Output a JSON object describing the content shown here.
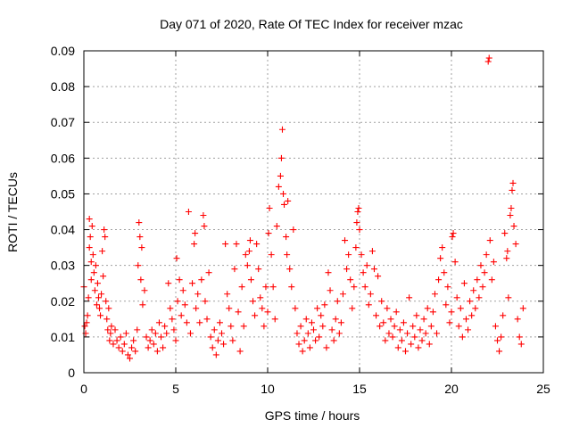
{
  "chart_data": {
    "type": "scatter",
    "title": "Day 071 of 2020, Rate Of TEC Index for receiver mzac",
    "xlabel": "GPS time / hours",
    "ylabel": "ROTI / TECUs",
    "xlim": [
      0,
      25
    ],
    "ylim": [
      0,
      0.09
    ],
    "x_ticks": [
      0,
      5,
      10,
      15,
      20,
      25
    ],
    "x_tick_labels": [
      "0",
      "5",
      "10",
      "15",
      "20",
      "25"
    ],
    "y_ticks": [
      0,
      0.01,
      0.02,
      0.03,
      0.04,
      0.05,
      0.06,
      0.07,
      0.08,
      0.09
    ],
    "y_tick_labels": [
      "0",
      "0.01",
      "0.02",
      "0.03",
      "0.04",
      "0.05",
      "0.06",
      "0.07",
      "0.08",
      "0.09"
    ],
    "grid": true,
    "marker": "+",
    "series": [
      {
        "name": "ROTI",
        "color": "#ff0000",
        "points": [
          [
            0.0,
            0.024
          ],
          [
            0.05,
            0.013
          ],
          [
            0.1,
            0.011
          ],
          [
            0.15,
            0.014
          ],
          [
            0.2,
            0.016
          ],
          [
            0.25,
            0.021
          ],
          [
            0.3,
            0.035
          ],
          [
            0.3,
            0.043
          ],
          [
            0.35,
            0.038
          ],
          [
            0.4,
            0.031
          ],
          [
            0.4,
            0.026
          ],
          [
            0.45,
            0.041
          ],
          [
            0.5,
            0.033
          ],
          [
            0.55,
            0.028
          ],
          [
            0.6,
            0.023
          ],
          [
            0.65,
            0.03
          ],
          [
            0.7,
            0.019
          ],
          [
            0.75,
            0.025
          ],
          [
            0.8,
            0.021
          ],
          [
            0.85,
            0.018
          ],
          [
            0.9,
            0.016
          ],
          [
            0.95,
            0.022
          ],
          [
            1.0,
            0.034
          ],
          [
            1.05,
            0.027
          ],
          [
            1.1,
            0.04
          ],
          [
            1.15,
            0.038
          ],
          [
            1.2,
            0.02
          ],
          [
            1.25,
            0.015
          ],
          [
            1.3,
            0.012
          ],
          [
            1.35,
            0.018
          ],
          [
            1.4,
            0.009
          ],
          [
            1.45,
            0.011
          ],
          [
            1.5,
            0.013
          ],
          [
            1.6,
            0.008
          ],
          [
            1.7,
            0.012
          ],
          [
            1.8,
            0.009
          ],
          [
            1.9,
            0.007
          ],
          [
            2.0,
            0.01
          ],
          [
            2.1,
            0.006
          ],
          [
            2.2,
            0.008
          ],
          [
            2.3,
            0.011
          ],
          [
            2.4,
            0.005
          ],
          [
            2.5,
            0.004
          ],
          [
            2.6,
            0.007
          ],
          [
            2.7,
            0.009
          ],
          [
            2.8,
            0.006
          ],
          [
            2.9,
            0.012
          ],
          [
            2.95,
            0.03
          ],
          [
            3.0,
            0.042
          ],
          [
            3.05,
            0.038
          ],
          [
            3.1,
            0.026
          ],
          [
            3.15,
            0.035
          ],
          [
            3.2,
            0.019
          ],
          [
            3.3,
            0.023
          ],
          [
            3.4,
            0.01
          ],
          [
            3.5,
            0.007
          ],
          [
            3.6,
            0.009
          ],
          [
            3.7,
            0.012
          ],
          [
            3.8,
            0.008
          ],
          [
            3.9,
            0.011
          ],
          [
            4.0,
            0.006
          ],
          [
            4.1,
            0.014
          ],
          [
            4.2,
            0.01
          ],
          [
            4.3,
            0.007
          ],
          [
            4.4,
            0.013
          ],
          [
            4.5,
            0.011
          ],
          [
            4.6,
            0.025
          ],
          [
            4.7,
            0.018
          ],
          [
            4.8,
            0.015
          ],
          [
            4.9,
            0.012
          ],
          [
            5.0,
            0.009
          ],
          [
            5.05,
            0.032
          ],
          [
            5.1,
            0.02
          ],
          [
            5.2,
            0.026
          ],
          [
            5.3,
            0.016
          ],
          [
            5.4,
            0.023
          ],
          [
            5.5,
            0.019
          ],
          [
            5.6,
            0.014
          ],
          [
            5.7,
            0.045
          ],
          [
            5.8,
            0.011
          ],
          [
            5.9,
            0.025
          ],
          [
            6.0,
            0.036
          ],
          [
            6.05,
            0.039
          ],
          [
            6.1,
            0.018
          ],
          [
            6.2,
            0.022
          ],
          [
            6.3,
            0.014
          ],
          [
            6.4,
            0.026
          ],
          [
            6.5,
            0.044
          ],
          [
            6.55,
            0.041
          ],
          [
            6.6,
            0.02
          ],
          [
            6.7,
            0.015
          ],
          [
            6.8,
            0.028
          ],
          [
            6.9,
            0.01
          ],
          [
            7.0,
            0.007
          ],
          [
            7.1,
            0.012
          ],
          [
            7.2,
            0.005
          ],
          [
            7.3,
            0.009
          ],
          [
            7.4,
            0.014
          ],
          [
            7.5,
            0.011
          ],
          [
            7.6,
            0.008
          ],
          [
            7.7,
            0.036
          ],
          [
            7.8,
            0.022
          ],
          [
            7.9,
            0.018
          ],
          [
            8.0,
            0.013
          ],
          [
            8.1,
            0.009
          ],
          [
            8.2,
            0.029
          ],
          [
            8.3,
            0.036
          ],
          [
            8.4,
            0.017
          ],
          [
            8.5,
            0.006
          ],
          [
            8.6,
            0.024
          ],
          [
            8.7,
            0.013
          ],
          [
            8.8,
            0.033
          ],
          [
            8.9,
            0.03
          ],
          [
            9.0,
            0.034
          ],
          [
            9.05,
            0.037
          ],
          [
            9.1,
            0.026
          ],
          [
            9.2,
            0.02
          ],
          [
            9.3,
            0.016
          ],
          [
            9.4,
            0.036
          ],
          [
            9.5,
            0.029
          ],
          [
            9.6,
            0.021
          ],
          [
            9.7,
            0.018
          ],
          [
            9.8,
            0.013
          ],
          [
            9.9,
            0.024
          ],
          [
            10.0,
            0.017
          ],
          [
            10.05,
            0.039
          ],
          [
            10.1,
            0.046
          ],
          [
            10.2,
            0.033
          ],
          [
            10.3,
            0.024
          ],
          [
            10.4,
            0.015
          ],
          [
            10.5,
            0.041
          ],
          [
            10.6,
            0.052
          ],
          [
            10.7,
            0.055
          ],
          [
            10.75,
            0.06
          ],
          [
            10.8,
            0.068
          ],
          [
            10.85,
            0.05
          ],
          [
            10.9,
            0.047
          ],
          [
            11.0,
            0.038
          ],
          [
            11.05,
            0.033
          ],
          [
            11.1,
            0.048
          ],
          [
            11.2,
            0.029
          ],
          [
            11.3,
            0.024
          ],
          [
            11.4,
            0.04
          ],
          [
            11.5,
            0.018
          ],
          [
            11.6,
            0.011
          ],
          [
            11.7,
            0.008
          ],
          [
            11.8,
            0.013
          ],
          [
            11.9,
            0.006
          ],
          [
            12.0,
            0.009
          ],
          [
            12.1,
            0.015
          ],
          [
            12.2,
            0.011
          ],
          [
            12.3,
            0.007
          ],
          [
            12.4,
            0.014
          ],
          [
            12.5,
            0.012
          ],
          [
            12.6,
            0.009
          ],
          [
            12.7,
            0.018
          ],
          [
            12.8,
            0.01
          ],
          [
            12.9,
            0.016
          ],
          [
            13.0,
            0.013
          ],
          [
            13.1,
            0.019
          ],
          [
            13.2,
            0.007
          ],
          [
            13.3,
            0.028
          ],
          [
            13.4,
            0.023
          ],
          [
            13.5,
            0.012
          ],
          [
            13.6,
            0.009
          ],
          [
            13.7,
            0.015
          ],
          [
            13.8,
            0.02
          ],
          [
            13.9,
            0.011
          ],
          [
            14.0,
            0.014
          ],
          [
            14.1,
            0.022
          ],
          [
            14.2,
            0.037
          ],
          [
            14.3,
            0.029
          ],
          [
            14.4,
            0.033
          ],
          [
            14.5,
            0.026
          ],
          [
            14.6,
            0.018
          ],
          [
            14.7,
            0.024
          ],
          [
            14.8,
            0.035
          ],
          [
            14.85,
            0.042
          ],
          [
            14.9,
            0.045
          ],
          [
            14.95,
            0.046
          ],
          [
            15.0,
            0.04
          ],
          [
            15.1,
            0.033
          ],
          [
            15.2,
            0.028
          ],
          [
            15.3,
            0.024
          ],
          [
            15.4,
            0.03
          ],
          [
            15.5,
            0.019
          ],
          [
            15.6,
            0.022
          ],
          [
            15.7,
            0.034
          ],
          [
            15.8,
            0.029
          ],
          [
            15.9,
            0.016
          ],
          [
            16.0,
            0.027
          ],
          [
            16.1,
            0.013
          ],
          [
            16.2,
            0.02
          ],
          [
            16.3,
            0.014
          ],
          [
            16.4,
            0.009
          ],
          [
            16.5,
            0.018
          ],
          [
            16.6,
            0.011
          ],
          [
            16.7,
            0.015
          ],
          [
            16.8,
            0.01
          ],
          [
            16.9,
            0.013
          ],
          [
            17.0,
            0.017
          ],
          [
            17.1,
            0.007
          ],
          [
            17.2,
            0.012
          ],
          [
            17.3,
            0.009
          ],
          [
            17.4,
            0.014
          ],
          [
            17.5,
            0.006
          ],
          [
            17.6,
            0.011
          ],
          [
            17.7,
            0.021
          ],
          [
            17.8,
            0.008
          ],
          [
            17.9,
            0.013
          ],
          [
            18.0,
            0.01
          ],
          [
            18.1,
            0.016
          ],
          [
            18.2,
            0.007
          ],
          [
            18.3,
            0.012
          ],
          [
            18.4,
            0.009
          ],
          [
            18.5,
            0.015
          ],
          [
            18.6,
            0.011
          ],
          [
            18.7,
            0.018
          ],
          [
            18.8,
            0.008
          ],
          [
            18.9,
            0.013
          ],
          [
            19.0,
            0.017
          ],
          [
            19.1,
            0.022
          ],
          [
            19.2,
            0.011
          ],
          [
            19.3,
            0.026
          ],
          [
            19.4,
            0.032
          ],
          [
            19.5,
            0.035
          ],
          [
            19.6,
            0.028
          ],
          [
            19.7,
            0.019
          ],
          [
            19.8,
            0.024
          ],
          [
            19.9,
            0.014
          ],
          [
            20.0,
            0.017
          ],
          [
            20.05,
            0.038
          ],
          [
            20.1,
            0.039
          ],
          [
            20.2,
            0.031
          ],
          [
            20.3,
            0.021
          ],
          [
            20.4,
            0.013
          ],
          [
            20.5,
            0.018
          ],
          [
            20.6,
            0.01
          ],
          [
            20.7,
            0.025
          ],
          [
            20.8,
            0.015
          ],
          [
            20.9,
            0.012
          ],
          [
            21.0,
            0.02
          ],
          [
            21.1,
            0.016
          ],
          [
            21.2,
            0.023
          ],
          [
            21.3,
            0.018
          ],
          [
            21.4,
            0.026
          ],
          [
            21.5,
            0.021
          ],
          [
            21.6,
            0.03
          ],
          [
            21.7,
            0.024
          ],
          [
            21.8,
            0.028
          ],
          [
            21.9,
            0.033
          ],
          [
            22.0,
            0.087
          ],
          [
            22.05,
            0.088
          ],
          [
            22.1,
            0.037
          ],
          [
            22.2,
            0.026
          ],
          [
            22.3,
            0.031
          ],
          [
            22.4,
            0.013
          ],
          [
            22.5,
            0.009
          ],
          [
            22.6,
            0.006
          ],
          [
            22.7,
            0.01
          ],
          [
            22.8,
            0.016
          ],
          [
            22.9,
            0.039
          ],
          [
            23.0,
            0.032
          ],
          [
            23.05,
            0.034
          ],
          [
            23.1,
            0.021
          ],
          [
            23.2,
            0.044
          ],
          [
            23.25,
            0.046
          ],
          [
            23.3,
            0.051
          ],
          [
            23.35,
            0.053
          ],
          [
            23.4,
            0.041
          ],
          [
            23.5,
            0.036
          ],
          [
            23.6,
            0.015
          ],
          [
            23.7,
            0.01
          ],
          [
            23.8,
            0.008
          ],
          [
            23.9,
            0.018
          ]
        ]
      }
    ]
  }
}
